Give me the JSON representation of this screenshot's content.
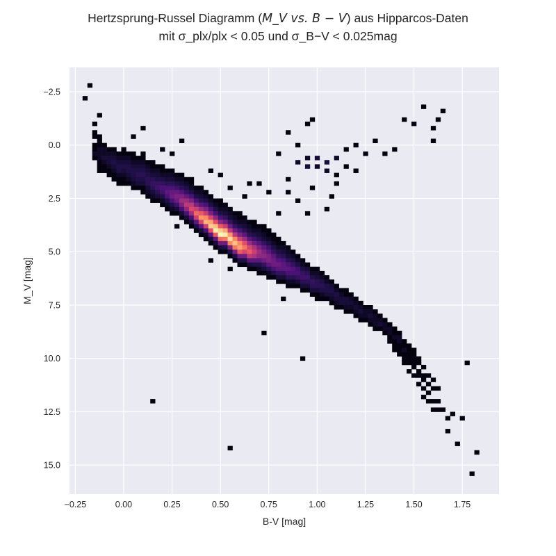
{
  "chart_data": {
    "type": "heatmap",
    "title_line1_prefix": "Hertzsprung-Russel Diagramm (",
    "title_line1_math": "M_V vs. B − V",
    "title_line1_suffix": ") aus Hipparcos-Daten",
    "title_line2": "mit σ_plx/plx < 0.05 und σ_B−V < 0.025mag",
    "xlabel": "B-V [mag]",
    "ylabel": "M_V [mag]",
    "xlim": [
      -0.28,
      1.94
    ],
    "ylim": [
      16.36,
      -3.64
    ],
    "y_inverted": true,
    "xticks": [
      "−0.25",
      "0.00",
      "0.25",
      "0.50",
      "0.75",
      "1.00",
      "1.25",
      "1.50",
      "1.75"
    ],
    "xtick_values": [
      -0.25,
      0,
      0.25,
      0.5,
      0.75,
      1.0,
      1.25,
      1.5,
      1.75
    ],
    "yticks": [
      "−2.5",
      "0.0",
      "2.5",
      "5.0",
      "7.5",
      "10.0",
      "12.5",
      "15.0"
    ],
    "ytick_values": [
      -2.5,
      0,
      2.5,
      5,
      7.5,
      10,
      12.5,
      15
    ],
    "grid": true,
    "colormap": "magma",
    "background": "#eaeaf2",
    "bin_bv": 0.025,
    "bin_mv": 0.2,
    "columns": [
      {
        "bv": -0.15,
        "mv0": -0.6,
        "counts": [
          1,
          1,
          0,
          1,
          1,
          2,
          1
        ]
      },
      {
        "bv": -0.125,
        "mv0": -0.4,
        "counts": [
          1,
          1,
          1,
          2,
          2,
          2,
          1,
          1,
          1
        ]
      },
      {
        "bv": -0.1,
        "mv0": 0,
        "counts": [
          1,
          2,
          2,
          3,
          2,
          1,
          1
        ]
      },
      {
        "bv": -0.075,
        "mv0": 0.2,
        "counts": [
          1,
          2,
          3,
          3,
          2,
          1,
          1
        ]
      },
      {
        "bv": -0.05,
        "mv0": 0.2,
        "counts": [
          1,
          2,
          3,
          4,
          3,
          2,
          1,
          1
        ]
      },
      {
        "bv": -0.025,
        "mv0": 0.4,
        "counts": [
          1,
          2,
          3,
          4,
          4,
          2,
          1,
          1
        ]
      },
      {
        "bv": 0,
        "mv0": 0.2,
        "counts": [
          1,
          1,
          2,
          3,
          4,
          3,
          2,
          1,
          1
        ]
      },
      {
        "bv": 0.025,
        "mv0": 0.4,
        "counts": [
          1,
          2,
          3,
          4,
          4,
          3,
          2,
          1
        ]
      },
      {
        "bv": 0.05,
        "mv0": 0.4,
        "counts": [
          1,
          1,
          2,
          3,
          4,
          4,
          3,
          2,
          1
        ]
      },
      {
        "bv": 0.075,
        "mv0": 0.6,
        "counts": [
          1,
          2,
          3,
          4,
          5,
          4,
          3,
          1
        ]
      },
      {
        "bv": 0.1,
        "mv0": 0.4,
        "counts": [
          1,
          1,
          2,
          3,
          4,
          5,
          4,
          3,
          1,
          1
        ]
      },
      {
        "bv": 0.125,
        "mv0": 0.8,
        "counts": [
          1,
          2,
          3,
          4,
          5,
          5,
          3,
          2,
          1
        ]
      },
      {
        "bv": 0.15,
        "mv0": 0.8,
        "counts": [
          1,
          1,
          2,
          3,
          5,
          6,
          5,
          3,
          2,
          1
        ]
      },
      {
        "bv": 0.175,
        "mv0": 1.0,
        "counts": [
          1,
          2,
          3,
          4,
          6,
          7,
          5,
          3,
          1
        ]
      },
      {
        "bv": 0.2,
        "mv0": 1.0,
        "counts": [
          1,
          1,
          2,
          4,
          6,
          8,
          7,
          4,
          2,
          1
        ]
      },
      {
        "bv": 0.225,
        "mv0": 1.2,
        "counts": [
          1,
          2,
          3,
          5,
          8,
          10,
          8,
          4,
          2,
          1
        ]
      },
      {
        "bv": 0.25,
        "mv0": 1.2,
        "counts": [
          1,
          2,
          3,
          5,
          8,
          11,
          12,
          8,
          4,
          2,
          1
        ]
      },
      {
        "bv": 0.275,
        "mv0": 1.4,
        "counts": [
          1,
          2,
          4,
          7,
          11,
          14,
          12,
          7,
          3,
          1
        ]
      },
      {
        "bv": 0.3,
        "mv0": 1.4,
        "counts": [
          1,
          2,
          3,
          5,
          9,
          14,
          18,
          14,
          8,
          3,
          1
        ]
      },
      {
        "bv": 0.325,
        "mv0": 1.6,
        "counts": [
          1,
          2,
          4,
          6,
          11,
          18,
          22,
          16,
          8,
          3,
          1
        ]
      },
      {
        "bv": 0.35,
        "mv0": 1.8,
        "counts": [
          1,
          2,
          4,
          8,
          14,
          22,
          26,
          18,
          8,
          3,
          1
        ]
      },
      {
        "bv": 0.375,
        "mv0": 2.0,
        "counts": [
          1,
          2,
          4,
          8,
          14,
          24,
          32,
          24,
          10,
          4,
          1
        ]
      },
      {
        "bv": 0.4,
        "mv0": 2.0,
        "counts": [
          1,
          2,
          3,
          5,
          10,
          18,
          30,
          38,
          26,
          10,
          3,
          1
        ]
      },
      {
        "bv": 0.425,
        "mv0": 2.2,
        "counts": [
          1,
          2,
          4,
          8,
          14,
          24,
          36,
          42,
          24,
          8,
          2,
          1
        ]
      },
      {
        "bv": 0.45,
        "mv0": 2.4,
        "counts": [
          1,
          2,
          4,
          8,
          14,
          26,
          40,
          46,
          28,
          10,
          3,
          1
        ]
      },
      {
        "bv": 0.475,
        "mv0": 2.6,
        "counts": [
          1,
          2,
          4,
          8,
          16,
          28,
          44,
          50,
          30,
          10,
          3,
          1
        ]
      },
      {
        "bv": 0.5,
        "mv0": 2.6,
        "counts": [
          1,
          1,
          2,
          4,
          8,
          16,
          30,
          46,
          52,
          32,
          12,
          3,
          1
        ]
      },
      {
        "bv": 0.525,
        "mv0": 2.8,
        "counts": [
          1,
          2,
          3,
          6,
          12,
          24,
          40,
          50,
          34,
          12,
          4,
          1
        ]
      },
      {
        "bv": 0.55,
        "mv0": 3.0,
        "counts": [
          1,
          2,
          3,
          6,
          12,
          22,
          38,
          48,
          36,
          14,
          4,
          1
        ]
      },
      {
        "bv": 0.575,
        "mv0": 3.2,
        "counts": [
          1,
          2,
          3,
          6,
          12,
          22,
          36,
          44,
          34,
          14,
          4,
          1
        ]
      },
      {
        "bv": 0.6,
        "mv0": 3.2,
        "counts": [
          1,
          1,
          2,
          4,
          8,
          14,
          24,
          36,
          40,
          30,
          12,
          4,
          1
        ]
      },
      {
        "bv": 0.625,
        "mv0": 3.4,
        "counts": [
          1,
          2,
          3,
          5,
          10,
          18,
          28,
          34,
          26,
          12,
          4,
          1
        ]
      },
      {
        "bv": 0.65,
        "mv0": 3.6,
        "counts": [
          1,
          2,
          3,
          5,
          10,
          18,
          26,
          30,
          22,
          10,
          3,
          1
        ]
      },
      {
        "bv": 0.675,
        "mv0": 3.6,
        "counts": [
          1,
          1,
          2,
          4,
          7,
          12,
          20,
          24,
          20,
          10,
          4,
          1
        ]
      },
      {
        "bv": 0.7,
        "mv0": 3.8,
        "counts": [
          1,
          2,
          3,
          5,
          9,
          14,
          18,
          16,
          10,
          4,
          2,
          1
        ]
      },
      {
        "bv": 0.725,
        "mv0": 3.8,
        "counts": [
          1,
          1,
          2,
          3,
          6,
          10,
          14,
          16,
          12,
          6,
          3,
          1
        ]
      },
      {
        "bv": 0.75,
        "mv0": 4.0,
        "counts": [
          1,
          1,
          2,
          4,
          7,
          10,
          14,
          14,
          10,
          5,
          2,
          1
        ]
      },
      {
        "bv": 0.775,
        "mv0": 4.2,
        "counts": [
          1,
          1,
          2,
          4,
          6,
          10,
          12,
          12,
          8,
          4,
          1
        ]
      },
      {
        "bv": 0.8,
        "mv0": 4.4,
        "counts": [
          1,
          1,
          2,
          4,
          6,
          9,
          12,
          10,
          6,
          3,
          1
        ]
      },
      {
        "bv": 0.825,
        "mv0": 4.6,
        "counts": [
          1,
          2,
          3,
          5,
          8,
          10,
          10,
          6,
          3,
          1
        ]
      },
      {
        "bv": 0.85,
        "mv0": 4.8,
        "counts": [
          1,
          2,
          3,
          5,
          8,
          10,
          8,
          5,
          2,
          1
        ]
      },
      {
        "bv": 0.875,
        "mv0": 5.0,
        "counts": [
          1,
          2,
          4,
          6,
          9,
          8,
          5,
          2,
          1
        ]
      },
      {
        "bv": 0.9,
        "mv0": 5.2,
        "counts": [
          1,
          2,
          4,
          7,
          8,
          6,
          3,
          1
        ]
      },
      {
        "bv": 0.925,
        "mv0": 5.4,
        "counts": [
          1,
          2,
          4,
          6,
          7,
          5,
          3,
          1
        ]
      },
      {
        "bv": 0.95,
        "mv0": 5.6,
        "counts": [
          1,
          3,
          5,
          7,
          5,
          3,
          1
        ]
      },
      {
        "bv": 0.975,
        "mv0": 5.8,
        "counts": [
          1,
          2,
          4,
          6,
          5,
          3,
          1
        ]
      },
      {
        "bv": 1.0,
        "mv0": 5.8,
        "counts": [
          1,
          2,
          3,
          5,
          5,
          3,
          1,
          1
        ]
      },
      {
        "bv": 1.025,
        "mv0": 6.0,
        "counts": [
          1,
          2,
          4,
          5,
          4,
          2,
          1
        ]
      },
      {
        "bv": 1.05,
        "mv0": 6.2,
        "counts": [
          1,
          2,
          4,
          4,
          3,
          1
        ]
      },
      {
        "bv": 1.075,
        "mv0": 6.4,
        "counts": [
          1,
          3,
          4,
          3,
          2,
          1
        ]
      },
      {
        "bv": 1.1,
        "mv0": 6.6,
        "counts": [
          1,
          2,
          4,
          3,
          2,
          1
        ]
      },
      {
        "bv": 1.125,
        "mv0": 6.8,
        "counts": [
          1,
          2,
          3,
          3,
          1
        ]
      },
      {
        "bv": 1.15,
        "mv0": 6.8,
        "counts": [
          1,
          1,
          3,
          3,
          2,
          1
        ]
      },
      {
        "bv": 1.175,
        "mv0": 7.0,
        "counts": [
          1,
          2,
          3,
          2,
          1
        ]
      },
      {
        "bv": 1.2,
        "mv0": 7.2,
        "counts": [
          1,
          2,
          3,
          2,
          1
        ]
      },
      {
        "bv": 1.225,
        "mv0": 7.4,
        "counts": [
          1,
          2,
          3,
          2,
          1
        ]
      },
      {
        "bv": 1.25,
        "mv0": 7.6,
        "counts": [
          1,
          2,
          2,
          1
        ]
      },
      {
        "bv": 1.275,
        "mv0": 7.6,
        "counts": [
          1,
          2,
          3,
          2,
          1
        ]
      },
      {
        "bv": 1.3,
        "mv0": 7.8,
        "counts": [
          1,
          2,
          2,
          2,
          1
        ]
      },
      {
        "bv": 1.325,
        "mv0": 8.0,
        "counts": [
          1,
          2,
          3,
          1
        ]
      },
      {
        "bv": 1.35,
        "mv0": 8.2,
        "counts": [
          1,
          2,
          2,
          1
        ]
      },
      {
        "bv": 1.375,
        "mv0": 8.4,
        "counts": [
          1,
          2,
          2,
          1,
          1
        ]
      },
      {
        "bv": 1.4,
        "mv0": 8.6,
        "counts": [
          1,
          1,
          2,
          1,
          1,
          1
        ]
      },
      {
        "bv": 1.425,
        "mv0": 8.8,
        "counts": [
          1,
          2,
          2,
          1,
          1,
          1
        ]
      },
      {
        "bv": 1.45,
        "mv0": 9.2,
        "counts": [
          1,
          1,
          2,
          1,
          1,
          1
        ]
      },
      {
        "bv": 1.475,
        "mv0": 9.4,
        "counts": [
          1,
          1,
          1,
          1,
          1,
          0,
          1
        ]
      },
      {
        "bv": 1.5,
        "mv0": 9.6,
        "counts": [
          1,
          1,
          1,
          1,
          1,
          0,
          1
        ]
      },
      {
        "bv": 1.525,
        "mv0": 10.0,
        "counts": [
          1,
          1,
          0,
          1,
          1,
          0,
          1
        ]
      },
      {
        "bv": 1.55,
        "mv0": 10.4,
        "counts": [
          1,
          0,
          1,
          1,
          0,
          1,
          0,
          1
        ]
      },
      {
        "bv": 1.575,
        "mv0": 10.8,
        "counts": [
          1,
          0,
          1,
          0,
          1,
          0,
          1
        ]
      },
      {
        "bv": 1.6,
        "mv0": 11.0,
        "counts": [
          1,
          0,
          1,
          0,
          0,
          1,
          0,
          1
        ]
      },
      {
        "bv": 1.625,
        "mv0": 11.4,
        "counts": [
          1,
          0,
          0,
          1,
          0,
          1
        ]
      },
      {
        "bv": 1.65,
        "mv0": 12.4,
        "counts": [
          1
        ]
      },
      {
        "bv": 1.675,
        "mv0": 12.8,
        "counts": [
          1,
          0,
          0,
          1
        ]
      },
      {
        "bv": 1.7,
        "mv0": 12.6,
        "counts": [
          1
        ]
      }
    ],
    "sparse_cells": [
      [
        0.9,
        0.8,
        2
      ],
      [
        0.95,
        1.0,
        3
      ],
      [
        0.95,
        0.6,
        2
      ],
      [
        1.0,
        0.6,
        3
      ],
      [
        1.0,
        1.0,
        2
      ],
      [
        1.05,
        0.8,
        3
      ],
      [
        1.05,
        1.2,
        2
      ],
      [
        1.1,
        0.6,
        2
      ],
      [
        1.1,
        1.4,
        1
      ],
      [
        1.15,
        0.2,
        1
      ],
      [
        1.15,
        1.0,
        1
      ],
      [
        1.2,
        0.0,
        1
      ],
      [
        1.25,
        0.4,
        1
      ],
      [
        1.3,
        -0.2,
        1
      ],
      [
        0.85,
        1.6,
        1
      ],
      [
        0.85,
        2.2,
        1
      ],
      [
        0.9,
        2.6,
        1
      ],
      [
        0.95,
        3.2,
        1
      ],
      [
        0.9,
        0.0,
        1
      ],
      [
        0.8,
        0.4,
        1
      ],
      [
        0.75,
        2.2,
        1
      ],
      [
        0.7,
        1.8,
        1
      ],
      [
        0.8,
        3.2,
        1
      ],
      [
        0.975,
        2.0,
        1
      ],
      [
        1.075,
        2.4,
        1
      ],
      [
        1.05,
        3.0,
        1
      ],
      [
        1.1,
        1.8,
        1
      ],
      [
        1.2,
        1.2,
        1
      ],
      [
        1.35,
        0.4,
        1
      ],
      [
        1.4,
        0.2,
        1
      ],
      [
        1.6,
        -0.2,
        1
      ],
      [
        1.45,
        -1.2,
        1
      ],
      [
        1.5,
        -1.0,
        1
      ],
      [
        1.6,
        -0.8,
        1
      ],
      [
        1.65,
        -1.6,
        1
      ],
      [
        1.55,
        -1.8,
        1
      ],
      [
        1.625,
        -1.2,
        1
      ],
      [
        0.95,
        -1.0,
        1
      ],
      [
        0.975,
        -1.2,
        1
      ],
      [
        0.85,
        -0.6,
        1
      ],
      [
        0.15,
        12.0,
        1
      ],
      [
        0.55,
        14.2,
        1
      ],
      [
        0.725,
        8.8,
        1
      ],
      [
        0.925,
        10.0,
        1
      ],
      [
        1.775,
        10.2,
        1
      ],
      [
        1.8,
        15.4,
        1
      ],
      [
        1.825,
        14.4,
        1
      ],
      [
        1.725,
        14.0,
        1
      ],
      [
        1.75,
        12.8,
        1
      ],
      [
        0.2,
        0.2,
        1
      ],
      [
        0.25,
        0.4,
        1
      ],
      [
        0.3,
        -0.2,
        1
      ],
      [
        0.35,
        1.6,
        1
      ],
      [
        0.45,
        1.2,
        1
      ],
      [
        0.5,
        1.4,
        1
      ],
      [
        0.55,
        2.0,
        1
      ],
      [
        0.625,
        2.4,
        1
      ],
      [
        0.65,
        1.8,
        1
      ],
      [
        0.1,
        -0.8,
        1
      ],
      [
        0.05,
        -0.4,
        1
      ],
      [
        -0.125,
        -1.4,
        1
      ],
      [
        -0.175,
        -2.8,
        1
      ],
      [
        -0.2,
        -2.2,
        1
      ],
      [
        -0.15,
        -1.0,
        1
      ],
      [
        0.45,
        5.4,
        1
      ],
      [
        0.55,
        5.8,
        1
      ],
      [
        0.825,
        7.2,
        1
      ],
      [
        0.275,
        3.8,
        1
      ]
    ]
  }
}
